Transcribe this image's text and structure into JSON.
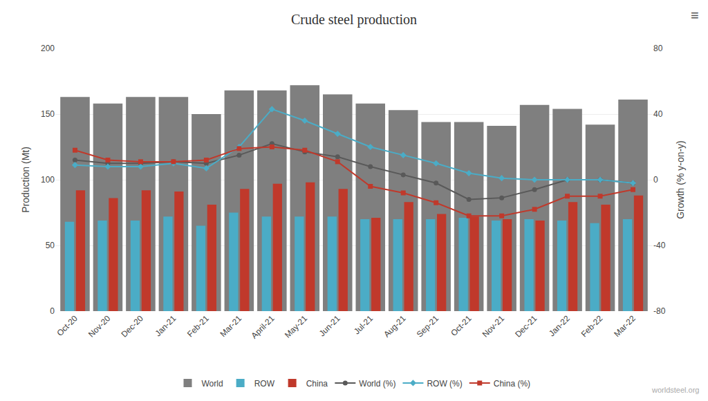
{
  "chart_data": {
    "type": "bar",
    "title": "Crude steel production",
    "y_label": "Production (Mt)",
    "y2_label": "Growth (% y-on-y)",
    "categories": [
      "Oct-20",
      "Nov-20",
      "Dec-20",
      "Jan-21",
      "Feb-21",
      "Mar-21",
      "April-21",
      "May-21",
      "Jun-21",
      "Jul-21",
      "Aug-21",
      "Sep-21",
      "Oct-21",
      "Nov-21",
      "Dec-21",
      "Jan-22",
      "Feb-22",
      "Mar-22"
    ],
    "series": [
      {
        "name": "World",
        "type": "bar",
        "color": "#7f7f7f",
        "values": [
          163,
          158,
          163,
          163,
          150,
          168,
          168,
          172,
          165,
          158,
          153,
          144,
          144,
          141,
          157,
          154,
          142,
          161
        ]
      },
      {
        "name": "ROW",
        "type": "bar",
        "color": "#4bacc6",
        "values": [
          68,
          69,
          69,
          72,
          65,
          75,
          72,
          72,
          72,
          70,
          70,
          70,
          71,
          69,
          70,
          69,
          67,
          70
        ]
      },
      {
        "name": "China",
        "type": "bar",
        "color": "#c0392b",
        "values": [
          92,
          86,
          92,
          91,
          81,
          93,
          97,
          98,
          93,
          71,
          83,
          74,
          72,
          70,
          69,
          83,
          81,
          88
        ]
      },
      {
        "name": "World (%)",
        "type": "line",
        "axis": "y2",
        "color": "#595959",
        "marker": "circle",
        "values": [
          12,
          10,
          10,
          11,
          10,
          15,
          22,
          17,
          14,
          8,
          3,
          -2,
          -12,
          -11,
          -6,
          0,
          0,
          -2
        ]
      },
      {
        "name": "ROW (%)",
        "type": "line",
        "axis": "y2",
        "color": "#4bacc6",
        "marker": "diamond",
        "values": [
          9,
          8,
          8,
          10,
          7,
          20,
          43,
          36,
          28,
          20,
          15,
          10,
          4,
          1,
          0,
          0,
          0,
          -2
        ]
      },
      {
        "name": "China (%)",
        "type": "line",
        "axis": "y2",
        "color": "#c0392b",
        "marker": "square",
        "values": [
          18,
          12,
          11,
          11,
          12,
          19,
          20,
          18,
          11,
          -4,
          -8,
          -14,
          -22,
          -22,
          -18,
          -10,
          -10,
          -6
        ]
      }
    ],
    "ylim": [
      0,
      200
    ],
    "yticks": [
      0,
      50,
      100,
      150,
      200
    ],
    "y2lim": [
      -80,
      80
    ],
    "y2ticks": [
      -80,
      -40,
      0,
      40,
      80
    ],
    "grid": true,
    "legend": "bottom",
    "annotations": [
      {
        "text": "worldsteel.org"
      },
      {
        "text": "≡"
      }
    ]
  }
}
